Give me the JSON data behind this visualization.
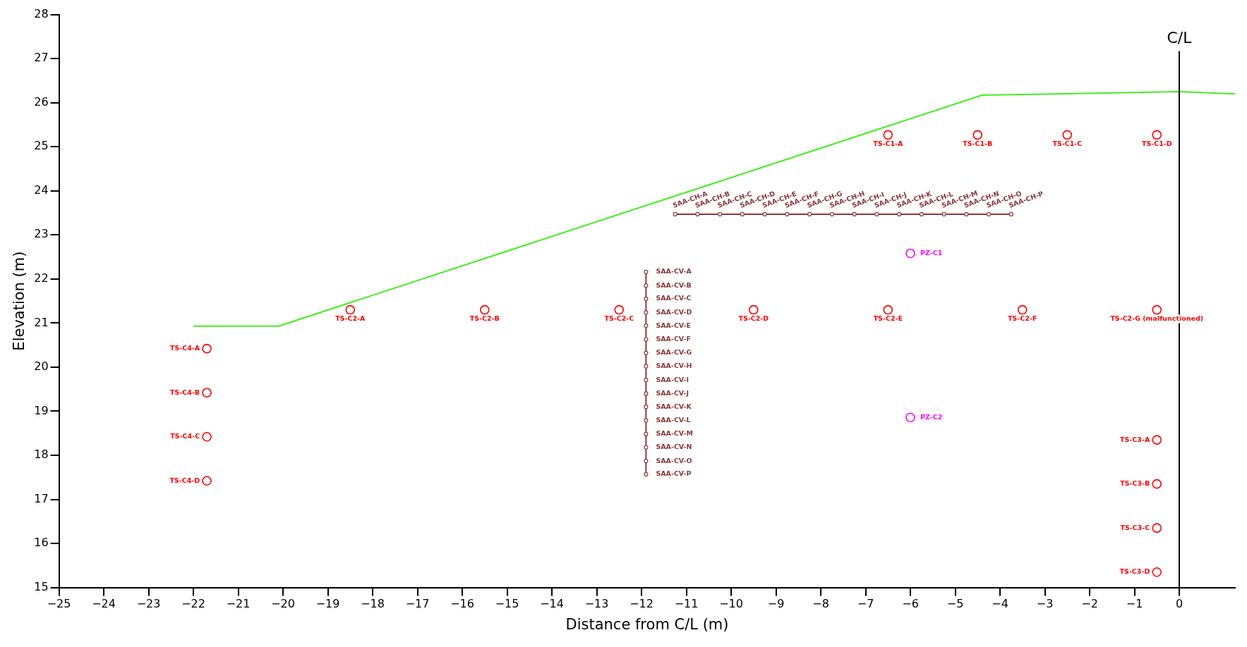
{
  "chart_data": {
    "type": "scatter",
    "xlabel": "Distance from C/L (m)",
    "ylabel": "Elevation (m)",
    "xlim": [
      -25,
      1.25
    ],
    "xticks": [
      -25,
      -24,
      -23,
      -22,
      -21,
      -20,
      -19,
      -18,
      -17,
      -16,
      -15,
      -14,
      -13,
      -12,
      -11,
      -10,
      -9,
      -8,
      -7,
      -6,
      -5,
      -4,
      -3,
      -2,
      -1,
      0
    ],
    "ylim": [
      15,
      28
    ],
    "yticks": [
      15,
      16,
      17,
      18,
      19,
      20,
      21,
      22,
      23,
      24,
      25,
      26,
      27,
      28
    ],
    "grid": false,
    "legend": false,
    "ref_lines": [
      {
        "axis": "x",
        "value": 0,
        "label": "C/L",
        "color": "#000000"
      }
    ],
    "series": [
      {
        "type": "line",
        "color": "#44ee22",
        "marker": "none",
        "x": [
          -22,
          -20.1,
          -4.4,
          0,
          1.25
        ],
        "values": [
          20.93,
          20.93,
          26.17,
          26.25,
          26.2
        ]
      },
      {
        "type": "scatter",
        "color": "#ff0000",
        "marker": "circle",
        "x": [
          -21.7,
          -21.7,
          -21.7,
          -21.7,
          -18.5,
          -15.5,
          -12.5,
          -9.5,
          -6.5,
          -3.5,
          -0.5,
          -6.5,
          -4.5,
          -2.5,
          -0.5,
          -0.5,
          -0.5,
          -0.5,
          -0.5
        ],
        "values": [
          20.42,
          19.42,
          18.42,
          17.42,
          21.3,
          21.3,
          21.3,
          21.3,
          21.3,
          21.3,
          21.3,
          25.27,
          25.27,
          25.27,
          25.27,
          18.35,
          17.35,
          16.35,
          15.35
        ],
        "value_labels": [
          "TS-C4-A",
          "TS-C4-B",
          "TS-C4-C",
          "TS-C4-D",
          "TS-C2-A",
          "TS-C2-B",
          "TS-C2-C",
          "TS-C2-D",
          "TS-C2-E",
          "TS-C2-F",
          "TS-C2-G (malfunctioned)",
          "TS-C1-A",
          "TS-C1-B",
          "TS-C1-C",
          "TS-C1-D",
          "TS-C3-A",
          "TS-C3-B",
          "TS-C3-C",
          "TS-C3-D"
        ]
      },
      {
        "type": "scatter",
        "color": "#ff00ff",
        "marker": "circle",
        "x": [
          -6,
          -6
        ],
        "values": [
          22.58,
          18.86
        ],
        "value_labels": [
          "PZ-C1",
          "PZ-C2"
        ]
      },
      {
        "type": "line",
        "color": "#8b3a3a",
        "marker": "circle",
        "x": [
          -11.9,
          -11.9,
          -11.9,
          -11.9,
          -11.9,
          -11.9,
          -11.9,
          -11.9,
          -11.9,
          -11.9,
          -11.9,
          -11.9,
          -11.9,
          -11.9,
          -11.9,
          -11.9
        ],
        "values": [
          22.16,
          21.85,
          21.55,
          21.24,
          20.94,
          20.63,
          20.32,
          20.02,
          19.71,
          19.4,
          19.1,
          18.79,
          18.48,
          18.18,
          17.87,
          17.57
        ],
        "value_labels": [
          "SAA-CV-A",
          "SAA-CV-B",
          "SAA-CV-C",
          "SAA-CV-D",
          "SAA-CV-E",
          "SAA-CV-F",
          "SAA-CV-G",
          "SAA-CV-H",
          "SAA-CV-I",
          "SAA-CV-J",
          "SAA-CV-K",
          "SAA-CV-L",
          "SAA-CV-M",
          "SAA-CV-N",
          "SAA-CV-O",
          "SAA-CV-P"
        ]
      },
      {
        "type": "line",
        "color": "#8b3a3a",
        "marker": "circle",
        "x": [
          -11.25,
          -10.75,
          -10.25,
          -9.75,
          -9.25,
          -8.75,
          -8.25,
          -7.75,
          -7.25,
          -6.75,
          -6.25,
          -5.75,
          -5.25,
          -4.75,
          -4.25,
          -3.75
        ],
        "values": [
          23.47,
          23.47,
          23.47,
          23.47,
          23.47,
          23.47,
          23.47,
          23.47,
          23.47,
          23.47,
          23.47,
          23.47,
          23.47,
          23.47,
          23.47,
          23.47
        ],
        "value_labels": [
          "SAA-CH-A",
          "SAA-CH-B",
          "SAA-CH-C",
          "SAA-CH-D",
          "SAA-CH-E",
          "SAA-CH-F",
          "SAA-CH-G",
          "SAA-CH-H",
          "SAA-CH-I",
          "SAA-CH-J",
          "SAA-CH-K",
          "SAA-CH-L",
          "SAA-CH-M",
          "SAA-CH-N",
          "SAA-CH-O",
          "SAA-CH-P"
        ]
      }
    ]
  }
}
